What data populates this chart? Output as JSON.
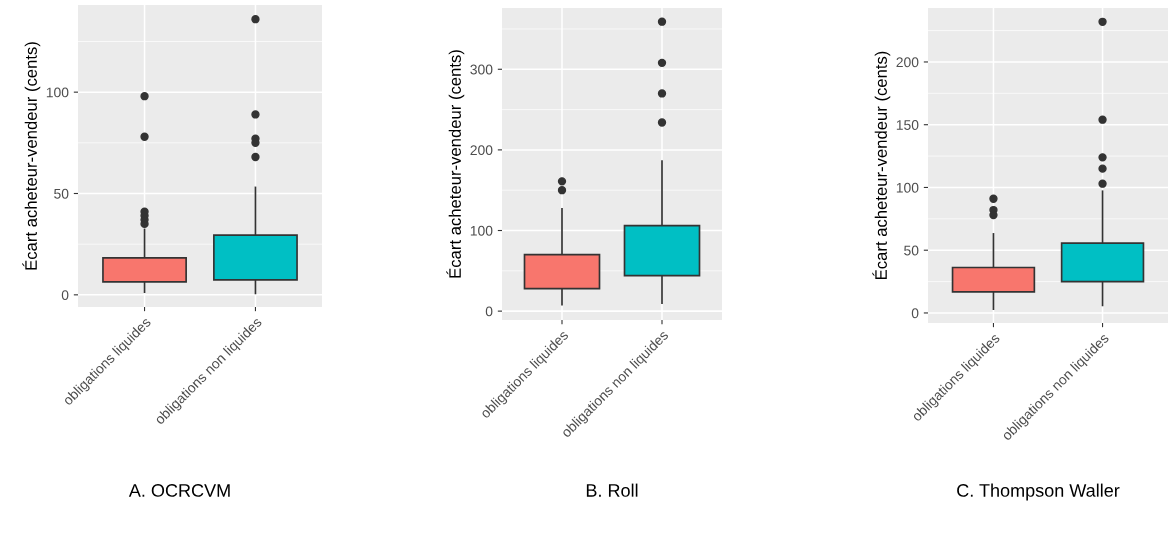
{
  "chart_data": [
    {
      "type": "box",
      "ylabel": "Écart acheteur-vendeur (cents)",
      "categories": [
        "obligations liquides",
        "obligations non liquides"
      ],
      "colors": [
        "#f8766d",
        "#00bfc4"
      ],
      "ylim": [
        -6,
        143
      ],
      "yticks": [
        0,
        50,
        100
      ],
      "grid": true,
      "annotations": [
        "A. OCRCVM"
      ],
      "boxes": [
        {
          "low": 1.3,
          "q1": 6.4,
          "median": 11.2,
          "q3": 18.2,
          "high": 32.3,
          "outliers": [
            98,
            78,
            41,
            39,
            37,
            35
          ]
        },
        {
          "low": 0.7,
          "q1": 7.4,
          "median": 13.7,
          "q3": 29.5,
          "high": 53,
          "outliers": [
            136,
            89,
            77,
            75,
            68
          ]
        }
      ]
    },
    {
      "type": "box",
      "ylabel": "Écart acheteur-vendeur (cents)",
      "categories": [
        "obligations liquides",
        "obligations non liquides"
      ],
      "colors": [
        "#f8766d",
        "#00bfc4"
      ],
      "ylim": [
        -11,
        376
      ],
      "yticks": [
        0,
        100,
        200,
        300
      ],
      "grid": true,
      "annotations": [
        "B. Roll"
      ],
      "boxes": [
        {
          "low": 8,
          "q1": 28,
          "median": 45,
          "q3": 70,
          "high": 127,
          "outliers": [
            161,
            150
          ]
        },
        {
          "low": 10,
          "q1": 44,
          "median": 66,
          "q3": 106,
          "high": 186,
          "outliers": [
            359,
            308,
            270,
            234
          ]
        }
      ]
    },
    {
      "type": "box",
      "ylabel": "Écart acheteur-vendeur (cents)",
      "categories": [
        "obligations liquides",
        "obligations non liquides"
      ],
      "colors": [
        "#f8766d",
        "#00bfc4"
      ],
      "ylim": [
        -8,
        243
      ],
      "yticks": [
        0,
        50,
        100,
        150,
        200
      ],
      "grid": true,
      "annotations": [
        "C. Thompson Waller"
      ],
      "boxes": [
        {
          "low": 3,
          "q1": 16.8,
          "median": 24.7,
          "q3": 36.2,
          "high": 63,
          "outliers": [
            91,
            82,
            78
          ]
        },
        {
          "low": 6,
          "q1": 25,
          "median": 36.7,
          "q3": 55.6,
          "high": 97,
          "outliers": [
            232,
            154,
            124,
            115,
            103
          ]
        }
      ]
    }
  ]
}
